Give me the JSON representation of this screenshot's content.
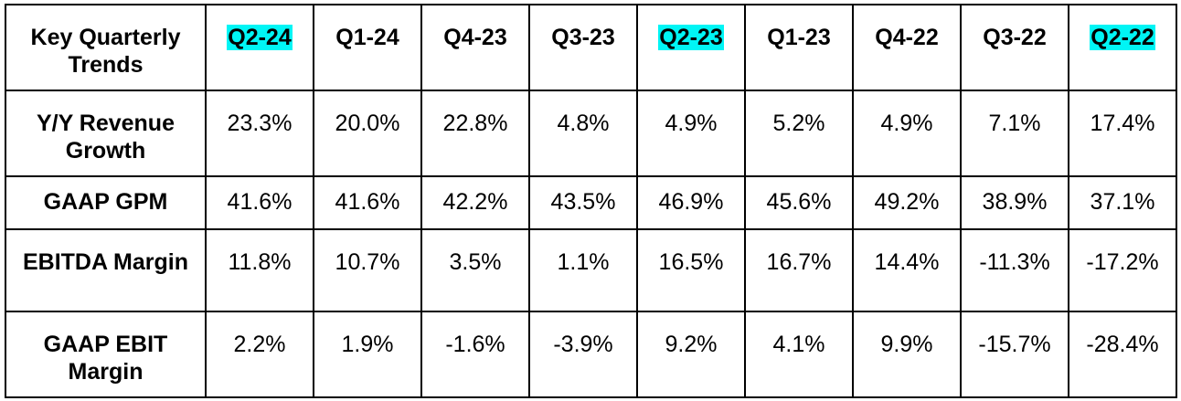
{
  "table": {
    "corner_label": "Key Quarterly Trends",
    "highlight_color": "#00f5f5",
    "columns": [
      {
        "label": "Q2-24",
        "highlighted": true
      },
      {
        "label": "Q1-24",
        "highlighted": false
      },
      {
        "label": "Q4-23",
        "highlighted": false
      },
      {
        "label": "Q3-23",
        "highlighted": false
      },
      {
        "label": "Q2-23",
        "highlighted": true
      },
      {
        "label": "Q1-23",
        "highlighted": false
      },
      {
        "label": "Q4-22",
        "highlighted": false
      },
      {
        "label": "Q3-22",
        "highlighted": false
      },
      {
        "label": "Q2-22",
        "highlighted": true
      }
    ],
    "rows": [
      {
        "label": "Y/Y Revenue Growth",
        "values": [
          "23.3%",
          "20.0%",
          "22.8%",
          "4.8%",
          "4.9%",
          "5.2%",
          "4.9%",
          "7.1%",
          "17.4%"
        ]
      },
      {
        "label": "GAAP GPM",
        "values": [
          "41.6%",
          "41.6%",
          "42.2%",
          "43.5%",
          "46.9%",
          "45.6%",
          "49.2%",
          "38.9%",
          "37.1%"
        ]
      },
      {
        "label": "EBITDA Margin",
        "values": [
          "11.8%",
          "10.7%",
          "3.5%",
          "1.1%",
          "16.5%",
          "16.7%",
          "14.4%",
          "-11.3%",
          "-17.2%"
        ]
      },
      {
        "label": "GAAP EBIT Margin",
        "values": [
          "2.2%",
          "1.9%",
          "-1.6%",
          "-3.9%",
          "9.2%",
          "4.1%",
          "9.9%",
          "-15.7%",
          "-28.4%"
        ]
      }
    ]
  }
}
